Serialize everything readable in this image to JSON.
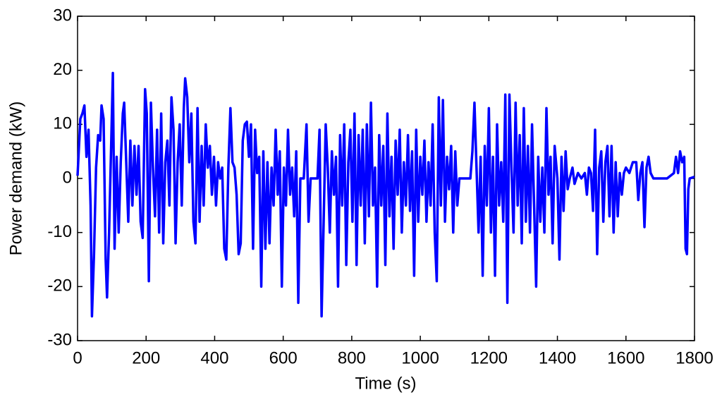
{
  "chart_data": {
    "type": "line",
    "xlabel": "Time (s)",
    "ylabel": "Power demand (kW)",
    "xlim": [
      0,
      1800
    ],
    "ylim": [
      -30,
      30
    ],
    "xticks": [
      0,
      200,
      400,
      600,
      800,
      1000,
      1200,
      1400,
      1600,
      1800
    ],
    "yticks": [
      -30,
      -20,
      -10,
      0,
      10,
      20,
      30
    ],
    "grid": false,
    "x": [
      0,
      8,
      14,
      20,
      26,
      32,
      38,
      42,
      48,
      54,
      60,
      66,
      70,
      76,
      82,
      86,
      92,
      98,
      103,
      108,
      114,
      120,
      126,
      132,
      136,
      142,
      148,
      154,
      160,
      166,
      172,
      178,
      184,
      190,
      197,
      202,
      208,
      214,
      220,
      226,
      232,
      238,
      244,
      250,
      256,
      262,
      268,
      274,
      280,
      286,
      292,
      298,
      304,
      310,
      314,
      320,
      326,
      332,
      338,
      344,
      350,
      356,
      362,
      368,
      374,
      380,
      386,
      392,
      398,
      404,
      410,
      416,
      422,
      428,
      434,
      440,
      446,
      452,
      458,
      464,
      470,
      476,
      482,
      488,
      494,
      500,
      506,
      512,
      518,
      524,
      530,
      536,
      542,
      548,
      554,
      560,
      566,
      572,
      578,
      584,
      590,
      596,
      602,
      608,
      614,
      620,
      626,
      632,
      638,
      644,
      650,
      660,
      668,
      674,
      680,
      690,
      700,
      706,
      712,
      718,
      724,
      730,
      736,
      742,
      748,
      754,
      760,
      766,
      772,
      778,
      784,
      790,
      796,
      802,
      808,
      814,
      820,
      826,
      832,
      838,
      844,
      850,
      856,
      862,
      868,
      874,
      880,
      886,
      892,
      898,
      904,
      910,
      916,
      922,
      928,
      934,
      940,
      946,
      952,
      958,
      964,
      970,
      976,
      982,
      988,
      994,
      1000,
      1006,
      1012,
      1018,
      1024,
      1030,
      1036,
      1042,
      1048,
      1054,
      1060,
      1066,
      1072,
      1078,
      1084,
      1090,
      1096,
      1102,
      1108,
      1114,
      1130,
      1146,
      1152,
      1158,
      1164,
      1170,
      1176,
      1182,
      1188,
      1194,
      1200,
      1206,
      1212,
      1218,
      1224,
      1230,
      1236,
      1242,
      1248,
      1254,
      1260,
      1266,
      1272,
      1278,
      1284,
      1290,
      1296,
      1302,
      1308,
      1314,
      1320,
      1326,
      1332,
      1338,
      1344,
      1350,
      1356,
      1362,
      1368,
      1374,
      1380,
      1386,
      1392,
      1400,
      1406,
      1412,
      1418,
      1424,
      1430,
      1436,
      1444,
      1450,
      1460,
      1470,
      1480,
      1486,
      1492,
      1498,
      1504,
      1510,
      1516,
      1522,
      1528,
      1534,
      1540,
      1546,
      1552,
      1558,
      1564,
      1570,
      1576,
      1582,
      1588,
      1594,
      1600,
      1610,
      1620,
      1630,
      1636,
      1642,
      1648,
      1654,
      1660,
      1666,
      1672,
      1680,
      1700,
      1720,
      1740,
      1746,
      1752,
      1758,
      1764,
      1770,
      1774,
      1778,
      1782,
      1786,
      1800
    ],
    "series": [
      {
        "name": "Power demand",
        "color": "#0000ff",
        "values": [
          0.5,
          11,
          12,
          13.5,
          4,
          9,
          -5,
          -25.5,
          -14,
          2,
          8,
          7,
          13.5,
          11,
          -15,
          -22,
          -10,
          6,
          19.5,
          -13,
          4,
          -10,
          3,
          12,
          14,
          3,
          -8,
          7,
          -5,
          6,
          -3,
          6,
          -8,
          -11,
          16.5,
          12,
          -19,
          14,
          2,
          -7,
          9,
          -10,
          12,
          -12,
          3,
          7,
          -5,
          15,
          9,
          -12,
          3,
          10,
          -5,
          13,
          18.5,
          15,
          3,
          12,
          -8,
          -12,
          13,
          -8,
          6,
          -5,
          10,
          2,
          6,
          -3,
          4,
          -5,
          3,
          0,
          2,
          -13,
          -15,
          2,
          13,
          3,
          2,
          -3,
          -14,
          -12,
          7,
          10,
          10.5,
          4,
          10,
          -13,
          9,
          1,
          4,
          -20,
          5,
          -13,
          3,
          -12,
          2,
          -5,
          9,
          -3,
          5,
          -20,
          2,
          -5,
          9,
          -3,
          2,
          -7,
          5,
          -23,
          0,
          0,
          10,
          -8,
          0,
          0,
          0,
          9,
          -25.5,
          -8,
          10,
          2,
          -10,
          5,
          -3,
          4,
          -20,
          8,
          -5,
          10,
          -16,
          3,
          9,
          -8,
          12,
          -16,
          8,
          -5,
          9,
          -12,
          10,
          -7,
          14,
          -5,
          2,
          -20,
          8,
          -5,
          6,
          -16,
          12,
          -7,
          4,
          -13,
          7,
          -3,
          9,
          -10,
          3,
          -5,
          8,
          -6,
          5,
          -18,
          9,
          -8,
          4,
          -3,
          7,
          -8,
          3,
          -5,
          10,
          -10,
          -19,
          15,
          -5,
          14.5,
          -8,
          4,
          -2,
          6,
          -10,
          5,
          -5,
          0,
          0,
          0,
          5,
          14,
          2,
          -10,
          4,
          -18,
          6,
          -5,
          13,
          -10,
          4,
          -18,
          10,
          -5,
          3,
          -8,
          15.5,
          -23,
          15.5,
          2,
          -10,
          14,
          -5,
          8,
          -12,
          13,
          -8,
          6,
          -10,
          10,
          -5,
          -20,
          4,
          -8,
          2,
          -10,
          13,
          -3,
          4,
          -12,
          6,
          0,
          -15,
          4,
          -6,
          5,
          -2,
          0,
          2,
          -1,
          1,
          0,
          1,
          -3,
          2,
          1,
          -6,
          9,
          -14,
          2,
          5,
          -8,
          3,
          6,
          -7,
          6,
          -10,
          3,
          -7,
          1,
          -3,
          1,
          2,
          1,
          3,
          3,
          -4,
          1,
          3,
          -9,
          2,
          4,
          1,
          0,
          0,
          0,
          1,
          4,
          1,
          5,
          3,
          4,
          -13,
          -14,
          -2,
          0,
          0.3
        ]
      }
    ]
  }
}
